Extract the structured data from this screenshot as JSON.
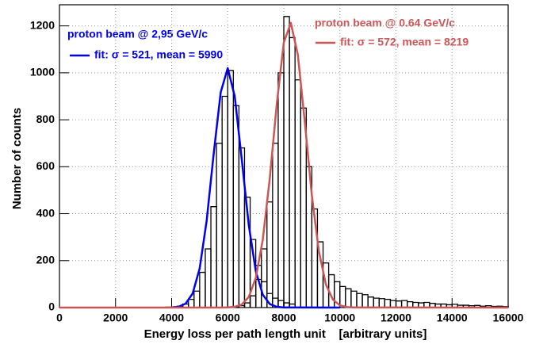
{
  "chart_data": {
    "type": "histogram",
    "xlabel": "Energy loss per path length unit    [arbitrary units]",
    "ylabel": "Number of counts",
    "xlim": [
      0,
      16000
    ],
    "ylim": [
      0,
      1290
    ],
    "xticks": [
      0,
      2000,
      4000,
      6000,
      8000,
      10000,
      12000,
      14000,
      16000
    ],
    "yticks": [
      0,
      200,
      400,
      600,
      800,
      1000,
      1200
    ],
    "grid": true,
    "histograms": [
      {
        "color": "#000000",
        "bins": [
          3800,
          4000,
          4200,
          4400,
          4600,
          4800,
          5000,
          5200,
          5400,
          5600,
          5800,
          6000,
          6200,
          6400,
          6600,
          6800,
          7000,
          7200,
          7400,
          7600,
          7800,
          8000,
          8200,
          8400
        ],
        "counts": [
          2,
          3,
          6,
          15,
          35,
          70,
          150,
          250,
          430,
          700,
          900,
          1010,
          860,
          680,
          470,
          290,
          180,
          110,
          60,
          40,
          30,
          20,
          15
        ]
      },
      {
        "color": "#000000",
        "bins": [
          6000,
          6200,
          6400,
          6600,
          6800,
          7000,
          7200,
          7400,
          7600,
          7800,
          8000,
          8200,
          8400,
          8600,
          8800,
          9000,
          9200,
          9400,
          9600,
          9800,
          10000,
          10200,
          10400,
          10600,
          10800,
          11000,
          11200,
          11400,
          11600,
          11800,
          12000,
          12200,
          12400,
          12600,
          12800,
          13000,
          13200,
          13400,
          13600,
          13800,
          14000,
          14200,
          14400,
          14600,
          14800,
          15000,
          15200,
          15400,
          15600,
          15800,
          16000
        ],
        "counts": [
          2,
          4,
          8,
          20,
          50,
          120,
          250,
          450,
          700,
          1000,
          1240,
          1150,
          970,
          850,
          600,
          420,
          280,
          190,
          140,
          110,
          90,
          80,
          70,
          60,
          55,
          45,
          40,
          38,
          35,
          30,
          28,
          30,
          25,
          22,
          20,
          22,
          18,
          15,
          15,
          12,
          14,
          10,
          10,
          8,
          9,
          6,
          8,
          5,
          6,
          4
        ]
      }
    ],
    "fits": [
      {
        "title": "proton beam @ 2,95 GeV/c",
        "name": "fit: σ = 521, mean = 5990",
        "color": "#0000ee",
        "x": [
          4000,
          4250,
          4500,
          4750,
          5000,
          5250,
          5500,
          5750,
          6000,
          6250,
          6500,
          6750,
          7000,
          7250,
          7500,
          7750,
          8000,
          10000
        ],
        "values": [
          0.7,
          3.9,
          17,
          60,
          167,
          371,
          656,
          917,
          1020,
          900,
          632,
          352,
          156,
          55,
          15,
          3.4,
          0.6,
          0
        ]
      },
      {
        "title": "proton beam @ 0.64 GeV/c",
        "name": "fit: σ = 572, mean = 8219",
        "color": "#cc5555",
        "x": [
          0,
          5750,
          6000,
          6250,
          6500,
          6750,
          7000,
          7250,
          7500,
          7750,
          8000,
          8250,
          8500,
          8750,
          9000,
          9250,
          9500,
          9750,
          10000,
          10250,
          10500,
          16000
        ],
        "values": [
          0,
          0.1,
          0.7,
          3.2,
          13,
          45,
          126,
          289,
          551,
          868,
          1129,
          1213,
          1077,
          790,
          478,
          240,
          99,
          34,
          9.5,
          2.2,
          0.4,
          0
        ]
      }
    ]
  }
}
